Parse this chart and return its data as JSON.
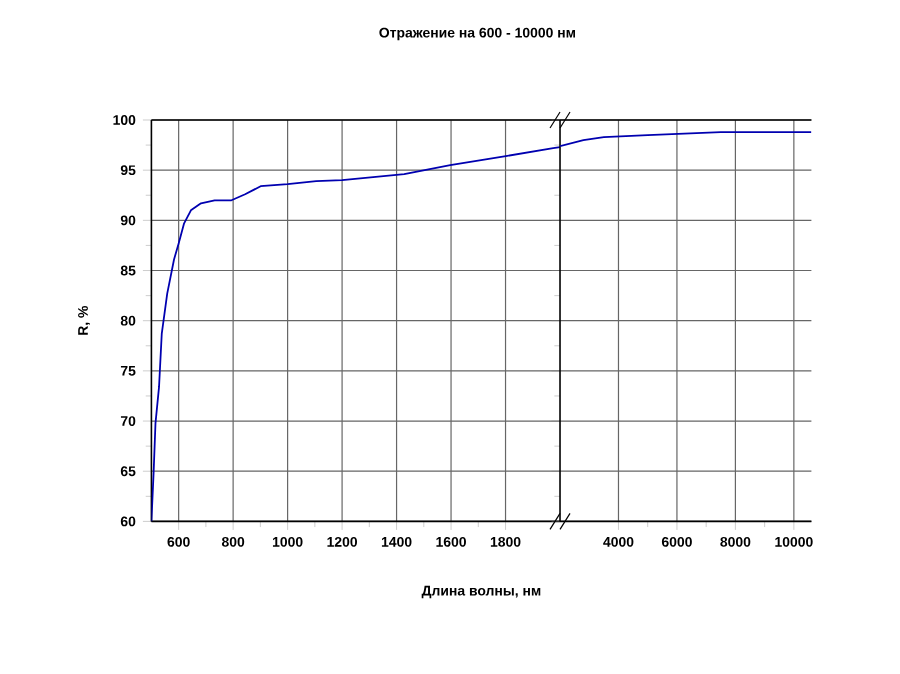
{
  "chart_data": [
    {
      "type": "line",
      "title": "Отражение на 600 - 10000 нм",
      "xlabel": "Длина волны, нм",
      "ylabel": "R, %",
      "xlim": [
        500,
        2000
      ],
      "xticks": [
        600,
        800,
        1000,
        1200,
        1400,
        1600,
        1800
      ],
      "ylim": [
        60,
        100
      ],
      "yticks": [
        60,
        65,
        70,
        75,
        80,
        85,
        90,
        95,
        100
      ],
      "grid": true,
      "color": "#0000b0",
      "x": [
        500,
        508,
        515,
        528,
        538,
        558,
        583,
        600,
        620,
        645,
        682,
        732,
        794,
        844,
        901,
        1000,
        1105,
        1200,
        1428,
        1597,
        1801,
        1975,
        2000
      ],
      "values": [
        60,
        64.8,
        69.8,
        73.4,
        78.7,
        82.7,
        86.1,
        87.7,
        89.7,
        91.0,
        91.7,
        92.0,
        92.0,
        92.6,
        93.4,
        93.6,
        93.9,
        94.0,
        94.6,
        95.5,
        96.4,
        97.2,
        97.3
      ]
    },
    {
      "type": "line",
      "xlim": [
        2000,
        10600
      ],
      "xticks": [
        4000,
        6000,
        8000,
        10000
      ],
      "ylim": [
        60,
        100
      ],
      "yticks": [
        60,
        65,
        70,
        75,
        80,
        85,
        90,
        95,
        100
      ],
      "grid": true,
      "tick_labels": "x",
      "color": "#0000b0",
      "x": [
        2000,
        2800,
        3500,
        5000,
        7500,
        10600
      ],
      "values": [
        97.4,
        98.0,
        98.3,
        98.5,
        98.8,
        98.8
      ]
    }
  ]
}
